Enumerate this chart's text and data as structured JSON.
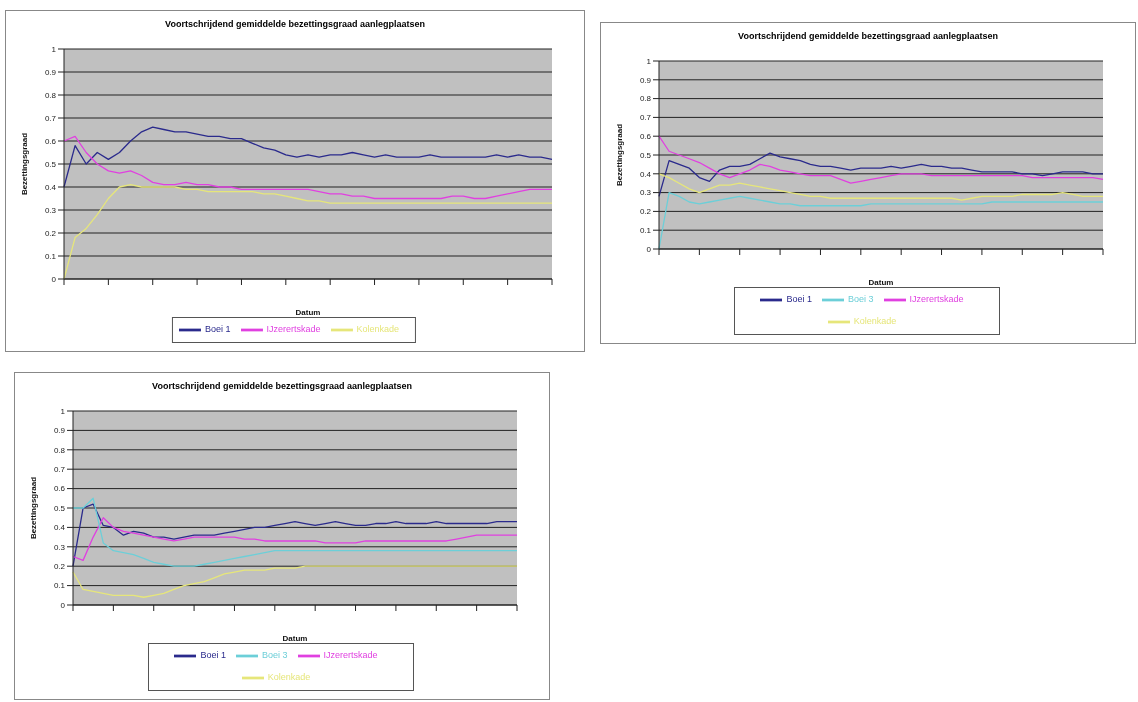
{
  "chart_data": [
    {
      "type": "line",
      "title": "Voortschrijdend gemiddelde bezettingsgraad aanlegplaatsen",
      "xlabel": "Datum",
      "ylabel": "Bezettingsgraad",
      "categories": [
        null,
        null,
        null,
        null,
        null,
        null,
        null,
        null,
        null,
        null,
        null,
        null,
        null,
        null,
        null,
        null,
        null,
        null,
        null,
        null,
        null,
        null,
        null,
        null,
        null,
        null,
        null,
        null,
        null,
        null,
        null,
        null,
        null,
        null,
        null,
        null,
        null,
        null,
        null,
        null,
        null,
        null,
        null,
        null,
        null
      ],
      "ylim": [
        0,
        1
      ],
      "yticks": [
        0,
        0.1,
        0.2,
        0.3,
        0.4,
        0.5,
        0.6,
        0.7,
        0.8,
        0.9,
        1
      ],
      "grid": "y",
      "legend": "bottom",
      "series": [
        {
          "name": "Boei 1",
          "color": "#2a2a8c",
          "values": [
            0.4,
            0.58,
            0.5,
            0.55,
            0.52,
            0.55,
            0.6,
            0.64,
            0.66,
            0.65,
            0.64,
            0.64,
            0.63,
            0.62,
            0.62,
            0.61,
            0.61,
            0.59,
            0.57,
            0.56,
            0.54,
            0.53,
            0.54,
            0.53,
            0.54,
            0.54,
            0.55,
            0.54,
            0.53,
            0.54,
            0.53,
            0.53,
            0.53,
            0.54,
            0.53,
            0.53,
            0.53,
            0.53,
            0.53,
            0.54,
            0.53,
            0.54,
            0.53,
            0.53,
            0.52
          ]
        },
        {
          "name": "IJzerertskade",
          "color": "#e040e0",
          "values": [
            0.6,
            0.62,
            0.55,
            0.5,
            0.47,
            0.46,
            0.47,
            0.45,
            0.42,
            0.41,
            0.41,
            0.42,
            0.41,
            0.41,
            0.4,
            0.4,
            0.39,
            0.39,
            0.39,
            0.39,
            0.39,
            0.39,
            0.39,
            0.38,
            0.37,
            0.37,
            0.36,
            0.36,
            0.35,
            0.35,
            0.35,
            0.35,
            0.35,
            0.35,
            0.35,
            0.36,
            0.36,
            0.35,
            0.35,
            0.36,
            0.37,
            0.38,
            0.39,
            0.39,
            0.39
          ]
        },
        {
          "name": "Kolenkade",
          "color": "#e6e67a",
          "values": [
            0,
            0.18,
            0.22,
            0.28,
            0.35,
            0.4,
            0.41,
            0.4,
            0.4,
            0.4,
            0.4,
            0.39,
            0.39,
            0.38,
            0.38,
            0.38,
            0.38,
            0.38,
            0.37,
            0.37,
            0.36,
            0.35,
            0.34,
            0.34,
            0.33,
            0.33,
            0.33,
            0.33,
            0.33,
            0.33,
            0.33,
            0.33,
            0.33,
            0.33,
            0.33,
            0.33,
            0.33,
            0.33,
            0.33,
            0.33,
            0.33,
            0.33,
            0.33,
            0.33,
            0.33
          ]
        }
      ]
    },
    {
      "type": "line",
      "title": "Voortschrijdend gemiddelde bezettingsgraad aanlegplaatsen",
      "xlabel": "Datum",
      "ylabel": "Bezettingsgraad",
      "categories": [
        null,
        null,
        null,
        null,
        null,
        null,
        null,
        null,
        null,
        null,
        null,
        null,
        null,
        null,
        null,
        null,
        null,
        null,
        null,
        null,
        null,
        null,
        null,
        null,
        null,
        null,
        null,
        null,
        null,
        null,
        null,
        null,
        null,
        null,
        null,
        null,
        null,
        null,
        null,
        null,
        null,
        null,
        null,
        null,
        null
      ],
      "ylim": [
        0,
        1
      ],
      "yticks": [
        0,
        0.1,
        0.2,
        0.3,
        0.4,
        0.5,
        0.6,
        0.7,
        0.8,
        0.9,
        1
      ],
      "grid": "y",
      "legend": "bottom",
      "series": [
        {
          "name": "Boei 1",
          "color": "#2a2a8c",
          "values": [
            0.28,
            0.47,
            0.45,
            0.43,
            0.38,
            0.36,
            0.42,
            0.44,
            0.44,
            0.45,
            0.48,
            0.51,
            0.49,
            0.48,
            0.47,
            0.45,
            0.44,
            0.44,
            0.43,
            0.42,
            0.43,
            0.43,
            0.43,
            0.44,
            0.43,
            0.44,
            0.45,
            0.44,
            0.44,
            0.43,
            0.43,
            0.42,
            0.41,
            0.41,
            0.41,
            0.41,
            0.4,
            0.4,
            0.39,
            0.4,
            0.41,
            0.41,
            0.41,
            0.4,
            0.4
          ]
        },
        {
          "name": "IJzerertskade",
          "color": "#e040e0",
          "values": [
            0.6,
            0.52,
            0.5,
            0.48,
            0.46,
            0.43,
            0.4,
            0.38,
            0.4,
            0.42,
            0.45,
            0.44,
            0.42,
            0.41,
            0.4,
            0.39,
            0.39,
            0.39,
            0.37,
            0.35,
            0.36,
            0.37,
            0.38,
            0.39,
            0.4,
            0.4,
            0.4,
            0.39,
            0.39,
            0.39,
            0.39,
            0.39,
            0.39,
            0.39,
            0.39,
            0.39,
            0.39,
            0.38,
            0.38,
            0.38,
            0.38,
            0.38,
            0.38,
            0.38,
            0.37
          ]
        },
        {
          "name": "Kolenkade",
          "color": "#e6e67a",
          "values": [
            0.4,
            0.38,
            0.35,
            0.32,
            0.3,
            0.32,
            0.34,
            0.34,
            0.35,
            0.34,
            0.33,
            0.32,
            0.31,
            0.3,
            0.29,
            0.28,
            0.28,
            0.27,
            0.27,
            0.27,
            0.27,
            0.27,
            0.27,
            0.27,
            0.27,
            0.27,
            0.27,
            0.27,
            0.27,
            0.27,
            0.26,
            0.27,
            0.28,
            0.28,
            0.28,
            0.28,
            0.29,
            0.29,
            0.29,
            0.29,
            0.3,
            0.29,
            0.28,
            0.28,
            0.28
          ]
        },
        {
          "name": "Boei 3",
          "color": "#6ccfd8",
          "values": [
            0,
            0.3,
            0.28,
            0.25,
            0.24,
            0.25,
            0.26,
            0.27,
            0.28,
            0.27,
            0.26,
            0.25,
            0.24,
            0.24,
            0.23,
            0.23,
            0.23,
            0.23,
            0.23,
            0.23,
            0.23,
            0.24,
            0.24,
            0.24,
            0.24,
            0.24,
            0.24,
            0.24,
            0.24,
            0.24,
            0.24,
            0.24,
            0.24,
            0.25,
            0.25,
            0.25,
            0.25,
            0.25,
            0.25,
            0.25,
            0.25,
            0.25,
            0.25,
            0.25,
            0.25
          ]
        }
      ]
    },
    {
      "type": "line",
      "title": "Voortschrijdend gemiddelde bezettingsgraad aanlegplaatsen",
      "xlabel": "Datum",
      "ylabel": "Bezettingsgraad",
      "categories": [
        null,
        null,
        null,
        null,
        null,
        null,
        null,
        null,
        null,
        null,
        null,
        null,
        null,
        null,
        null,
        null,
        null,
        null,
        null,
        null,
        null,
        null,
        null,
        null,
        null,
        null,
        null,
        null,
        null,
        null,
        null,
        null,
        null,
        null,
        null,
        null,
        null,
        null,
        null,
        null,
        null,
        null,
        null,
        null,
        null
      ],
      "ylim": [
        0,
        1
      ],
      "yticks": [
        0,
        0.1,
        0.2,
        0.3,
        0.4,
        0.5,
        0.6,
        0.7,
        0.8,
        0.9,
        1
      ],
      "grid": "y",
      "legend": "bottom",
      "series": [
        {
          "name": "Boei 1",
          "color": "#2a2a8c",
          "values": [
            0.2,
            0.5,
            0.52,
            0.41,
            0.4,
            0.36,
            0.38,
            0.37,
            0.35,
            0.35,
            0.34,
            0.35,
            0.36,
            0.36,
            0.36,
            0.37,
            0.38,
            0.39,
            0.4,
            0.4,
            0.41,
            0.42,
            0.43,
            0.42,
            0.41,
            0.42,
            0.43,
            0.42,
            0.41,
            0.41,
            0.42,
            0.42,
            0.43,
            0.42,
            0.42,
            0.42,
            0.43,
            0.42,
            0.42,
            0.42,
            0.42,
            0.42,
            0.43,
            0.43,
            0.43
          ]
        },
        {
          "name": "IJzerertskade",
          "color": "#e040e0",
          "values": [
            0.25,
            0.23,
            0.35,
            0.45,
            0.4,
            0.38,
            0.37,
            0.36,
            0.35,
            0.34,
            0.33,
            0.34,
            0.35,
            0.35,
            0.35,
            0.35,
            0.35,
            0.34,
            0.34,
            0.33,
            0.33,
            0.33,
            0.33,
            0.33,
            0.33,
            0.32,
            0.32,
            0.32,
            0.32,
            0.33,
            0.33,
            0.33,
            0.33,
            0.33,
            0.33,
            0.33,
            0.33,
            0.33,
            0.34,
            0.35,
            0.36,
            0.36,
            0.36,
            0.36,
            0.36
          ]
        },
        {
          "name": "Kolenkade",
          "color": "#e6e67a",
          "values": [
            0.17,
            0.08,
            0.07,
            0.06,
            0.05,
            0.05,
            0.05,
            0.04,
            0.05,
            0.06,
            0.08,
            0.1,
            0.11,
            0.12,
            0.14,
            0.16,
            0.17,
            0.18,
            0.18,
            0.18,
            0.19,
            0.19,
            0.19,
            0.2,
            0.2,
            0.2,
            0.2,
            0.2,
            0.2,
            0.2,
            0.2,
            0.2,
            0.2,
            0.2,
            0.2,
            0.2,
            0.2,
            0.2,
            0.2,
            0.2,
            0.2,
            0.2,
            0.2,
            0.2,
            0.2
          ]
        },
        {
          "name": "Boei 3",
          "color": "#6ccfd8",
          "values": [
            0.5,
            0.5,
            0.55,
            0.32,
            0.28,
            0.27,
            0.26,
            0.24,
            0.22,
            0.21,
            0.2,
            0.2,
            0.2,
            0.21,
            0.22,
            0.23,
            0.24,
            0.25,
            0.26,
            0.27,
            0.28,
            0.28,
            0.28,
            0.28,
            0.28,
            0.28,
            0.28,
            0.28,
            0.28,
            0.28,
            0.28,
            0.28,
            0.28,
            0.28,
            0.28,
            0.28,
            0.28,
            0.28,
            0.28,
            0.28,
            0.28,
            0.28,
            0.28,
            0.28,
            0.28
          ]
        }
      ]
    }
  ]
}
